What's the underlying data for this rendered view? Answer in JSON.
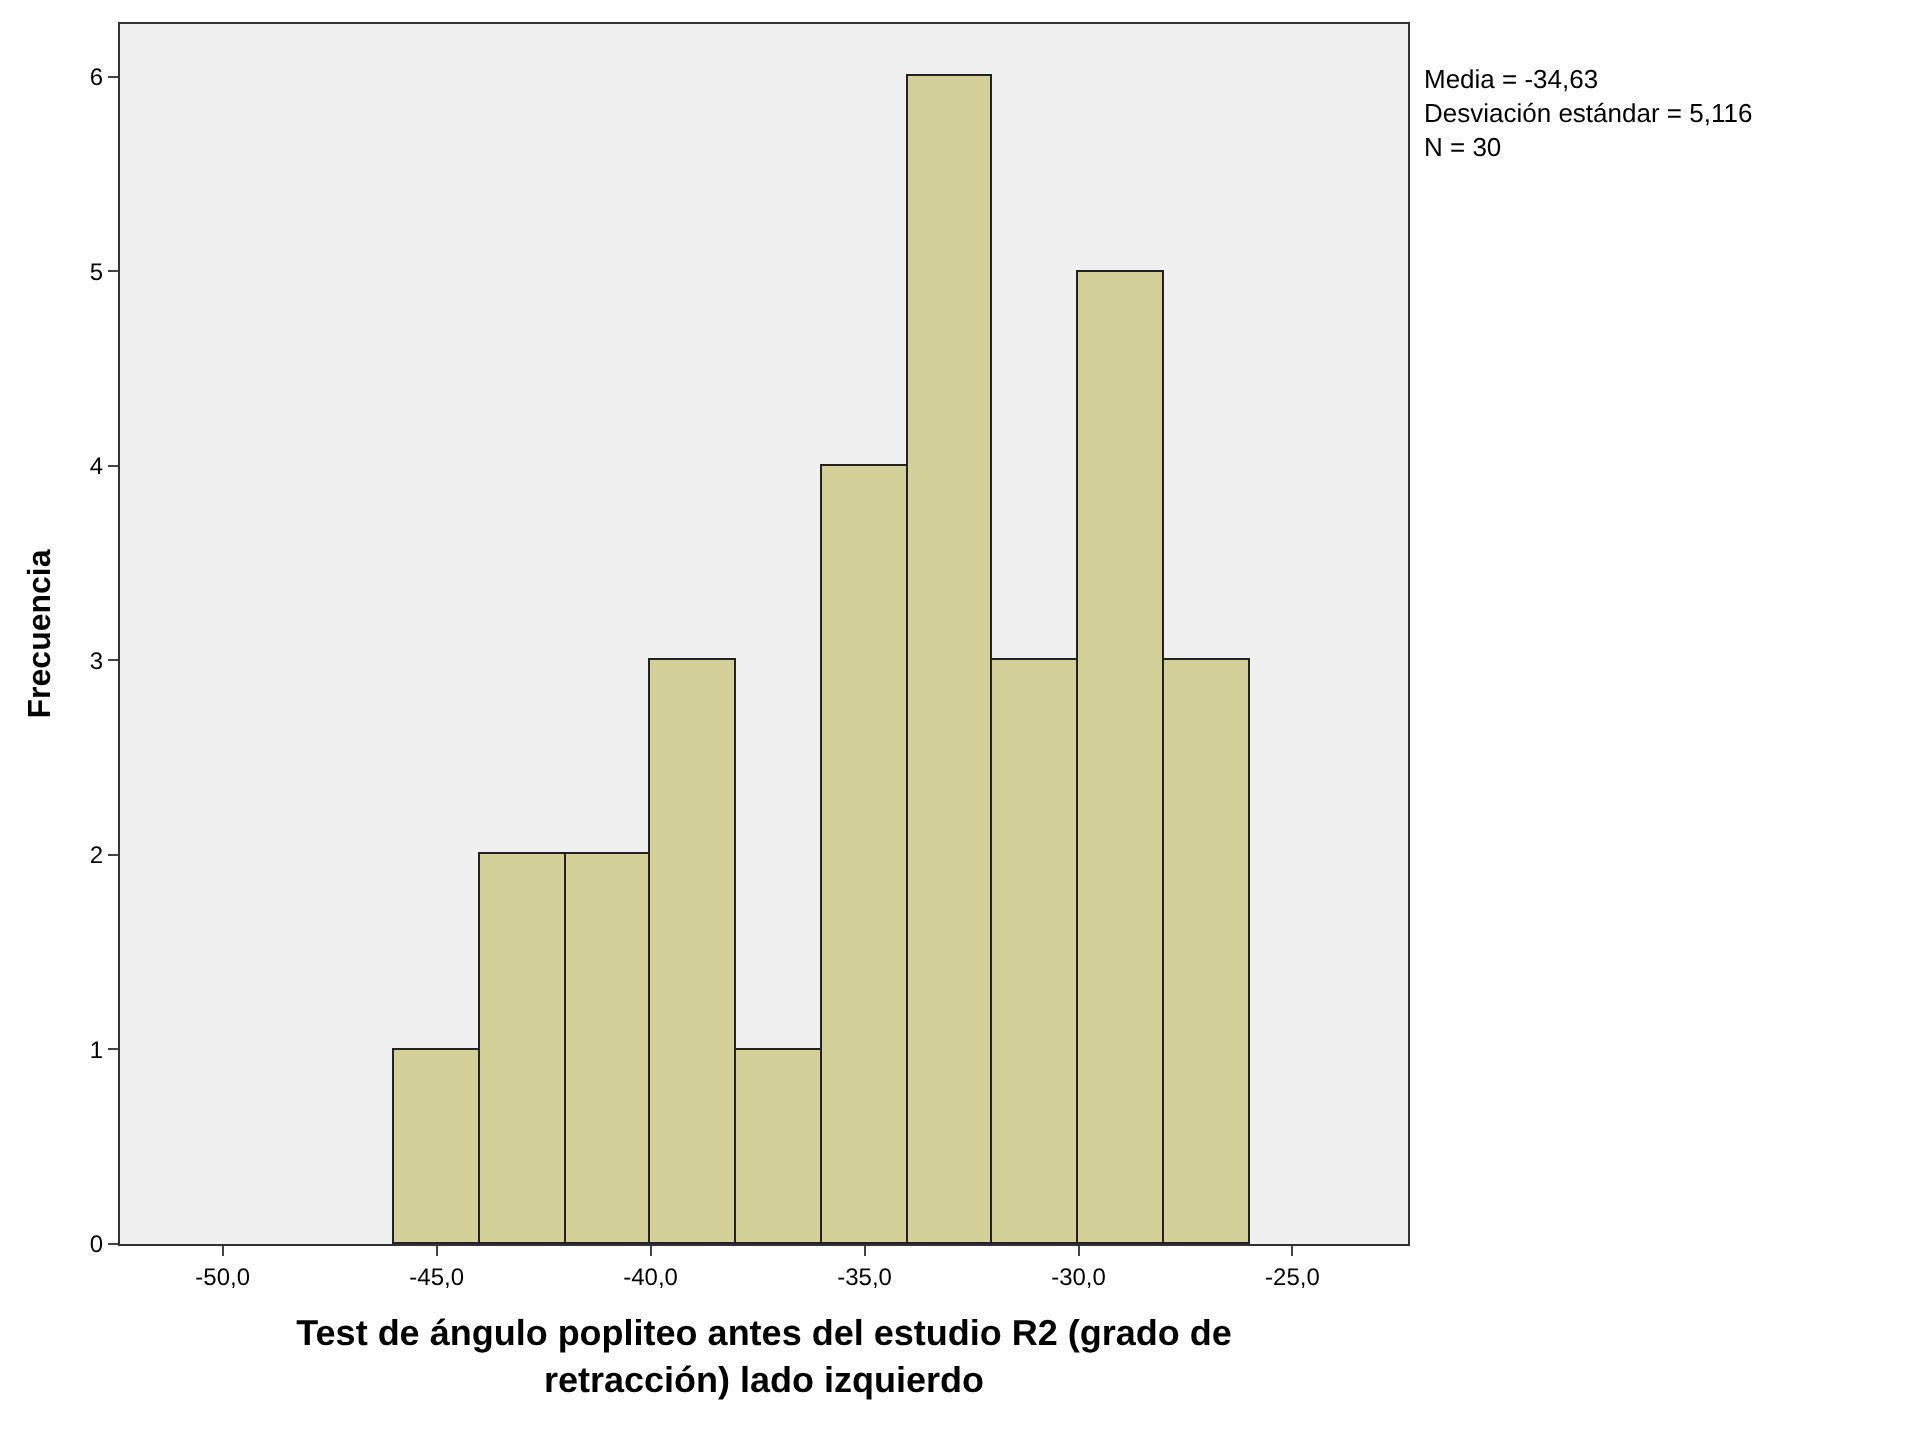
{
  "chart_data": {
    "type": "histogram",
    "xlabel": "Test de ángulo popliteo antes del estudio R2 (grado de retracción) lado izquierdo",
    "ylabel": "Frecuencia",
    "bins": [
      -46,
      -44,
      -42,
      -40,
      -38,
      -36,
      -34,
      -32,
      -30,
      -28,
      -26
    ],
    "values": [
      1,
      2,
      2,
      3,
      1,
      4,
      6,
      3,
      5,
      3
    ],
    "color": "#d3cf98",
    "xlim": [
      -52.4,
      -22.3
    ],
    "ylim": [
      0,
      6.27
    ],
    "xticks": [
      {
        "value": -50,
        "label": "-50,0"
      },
      {
        "value": -45,
        "label": "-45,0"
      },
      {
        "value": -40,
        "label": "-40,0"
      },
      {
        "value": -35,
        "label": "-35,0"
      },
      {
        "value": -30,
        "label": "-30,0"
      },
      {
        "value": -25,
        "label": "-25,0"
      }
    ],
    "yticks": [
      0,
      1,
      2,
      3,
      4,
      5,
      6
    ],
    "grid": false,
    "annotations": [
      "Media = -34,63",
      "Desviación estándar = 5,116",
      "N = 30"
    ]
  }
}
